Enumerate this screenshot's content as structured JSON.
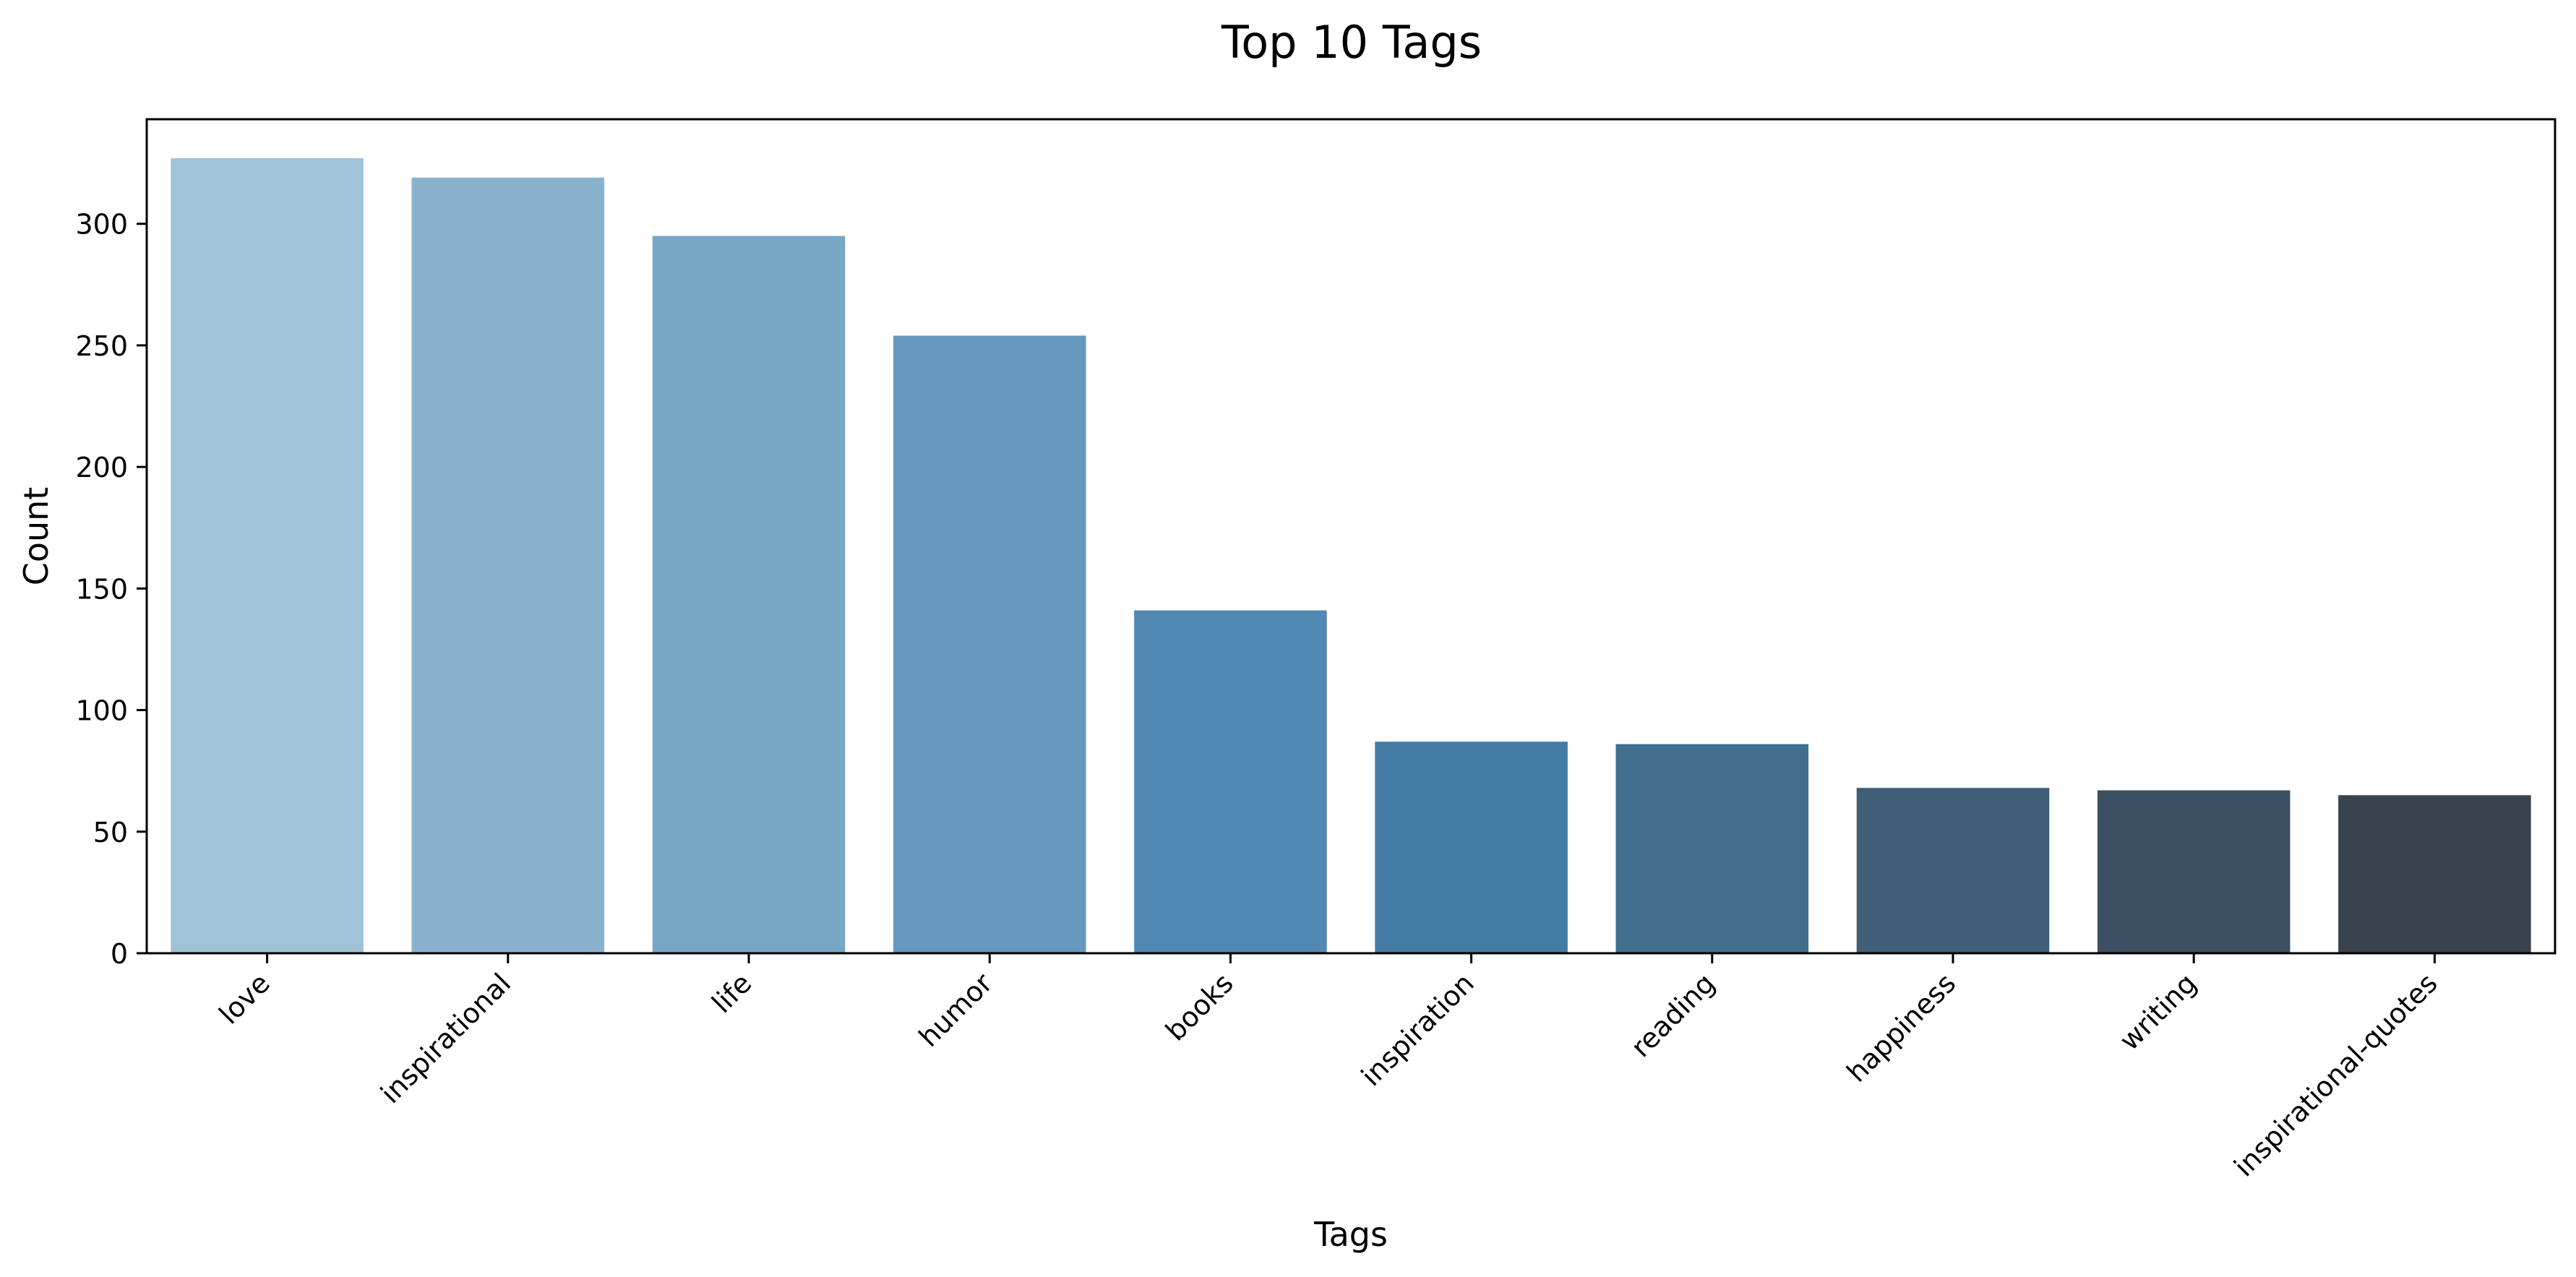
{
  "chart_data": {
    "type": "bar",
    "title": "Top 10 Tags",
    "xlabel": "Tags",
    "ylabel": "Count",
    "categories": [
      "love",
      "inspirational",
      "life",
      "humor",
      "books",
      "inspiration",
      "reading",
      "happiness",
      "writing",
      "inspirational-quotes"
    ],
    "values": [
      327,
      319,
      295,
      254,
      141,
      87,
      86,
      68,
      67,
      65
    ],
    "colors": [
      "#9fc2d7",
      "#89b2cc",
      "#78a6c5",
      "#6498bf",
      "#5189b4",
      "#447ba5",
      "#416e8d",
      "#3f5f79",
      "#3c5063",
      "#38434d"
    ],
    "ylim": [
      0,
      343
    ],
    "yticks": [
      0,
      50,
      100,
      150,
      200,
      250,
      300
    ],
    "grid": false,
    "legend": "none"
  }
}
